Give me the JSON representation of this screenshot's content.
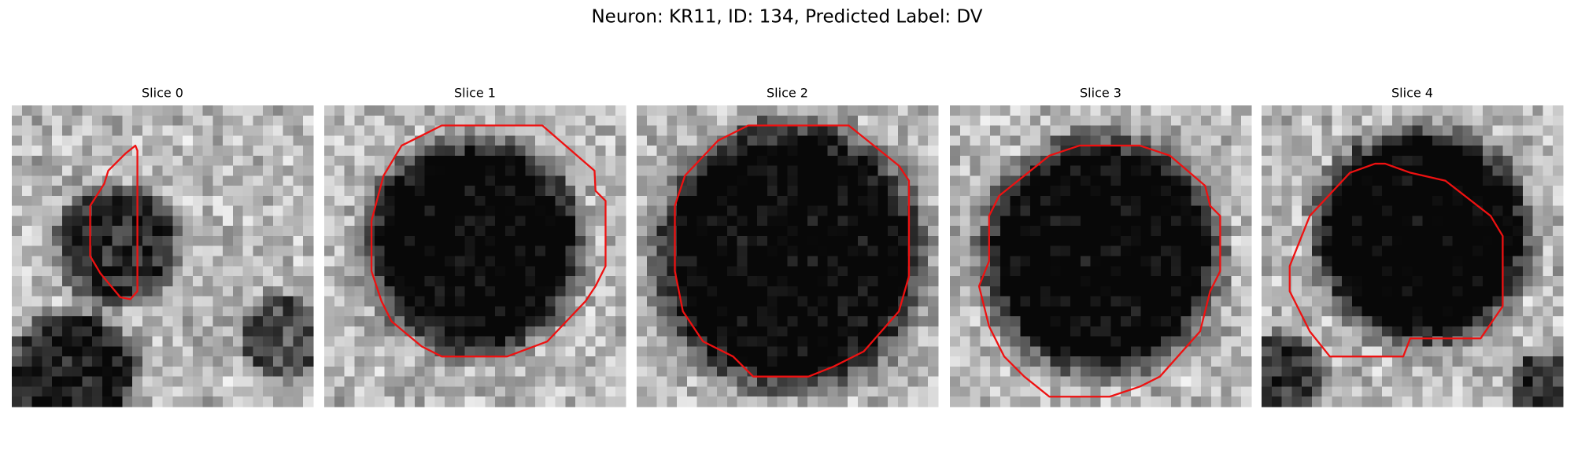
{
  "title": "Neuron: KR11, ID: 134, Predicted Label: DV",
  "panels": [
    {
      "title": "Slice 0"
    },
    {
      "title": "Slice 1"
    },
    {
      "title": "Slice 2"
    },
    {
      "title": "Slice 3"
    },
    {
      "title": "Slice 4"
    }
  ]
}
